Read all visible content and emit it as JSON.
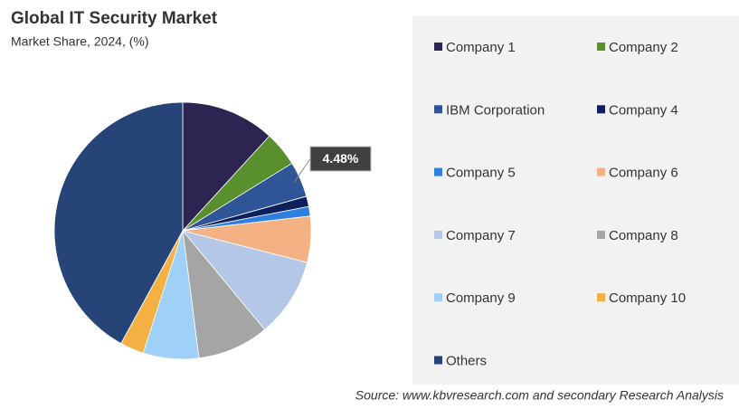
{
  "chart_data": {
    "type": "pie",
    "title": "Global IT Security Market",
    "subtitle": "Market Share, 2024, (%)",
    "categories": [
      "Company 1",
      "Company 2",
      "IBM Corporation",
      "Company 4",
      "Company 5",
      "Company 6",
      "Company 7",
      "Company 8",
      "Company 9",
      "Company 10",
      "Others"
    ],
    "values": [
      11.8,
      4.4,
      4.48,
      1.3,
      1.2,
      5.8,
      10,
      9,
      7,
      3,
      42.02
    ],
    "value_labels": [
      null,
      null,
      "4.48%",
      null,
      null,
      null,
      null,
      null,
      null,
      null,
      null
    ],
    "colors": [
      "#2e2451",
      "#5a8f2e",
      "#2f5597",
      "#0d1f5c",
      "#2f7fe0",
      "#f4b183",
      "#b4c7e7",
      "#a5a5a5",
      "#9fd0f7",
      "#f4b042",
      "#264478"
    ],
    "legend": "right",
    "source": "Source: www.kbvresearch.com and secondary Research Analysis"
  }
}
